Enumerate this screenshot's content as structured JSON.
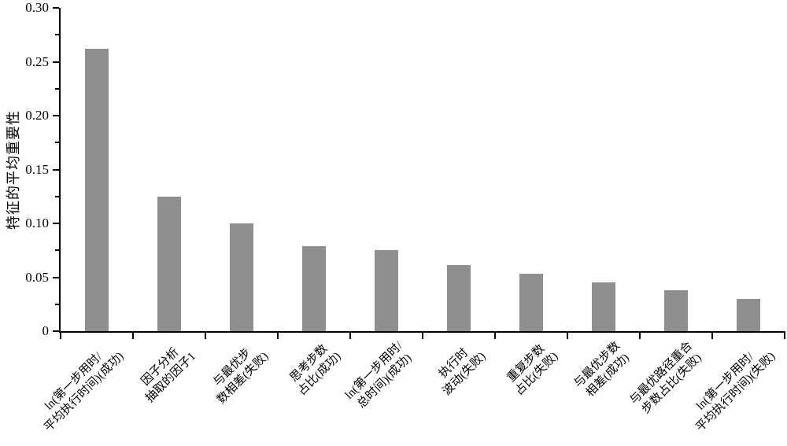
{
  "chart_data": {
    "type": "bar",
    "title": "",
    "xlabel": "",
    "ylabel": "特征的平均重要性",
    "ylim": [
      0,
      0.3
    ],
    "ytick_step": 0.05,
    "ytick_minor_step": 0.025,
    "ytick_labels": [
      "0",
      "0.05",
      "0.10",
      "0.15",
      "0.20",
      "0.25",
      "0.30"
    ],
    "grid": false,
    "legend": null,
    "bar_color": "#8f8f8f",
    "axis_color": "#000000",
    "categories": [
      "ln(第一步用时/平均执行时间)(成功)",
      "因子分析抽取的因子1",
      "与最优步数相差(失败)",
      "思考步数占比(成功)",
      "ln(第一步用时/总时间)(成功)",
      "执行时波动(失败)",
      "重复步数占比(失败)",
      "与最优步数相差(成功)",
      "与最优路径重合步数占比(失败)",
      "ln(第一步用时/平均执行时间)(失败)"
    ],
    "categories_lines": [
      [
        "ln(第一步用时/",
        "平均执行时间)(成功)"
      ],
      [
        "因子分析",
        "抽取的因子1"
      ],
      [
        "与最优步",
        "数相差(失败)"
      ],
      [
        "思考步数",
        "占比(成功)"
      ],
      [
        "ln(第一步用时/",
        "总时间)(成功)"
      ],
      [
        "执行时",
        "波动(失败)"
      ],
      [
        "重复步数",
        "占比(失败)"
      ],
      [
        "与最优步数",
        "相差(成功)"
      ],
      [
        "与最优路径重合",
        "步数占比(失败)"
      ],
      [
        "ln(第一步用时/",
        "平均执行时间)(失败)"
      ]
    ],
    "values": [
      0.262,
      0.125,
      0.1,
      0.079,
      0.075,
      0.061,
      0.053,
      0.045,
      0.038,
      0.03
    ]
  }
}
